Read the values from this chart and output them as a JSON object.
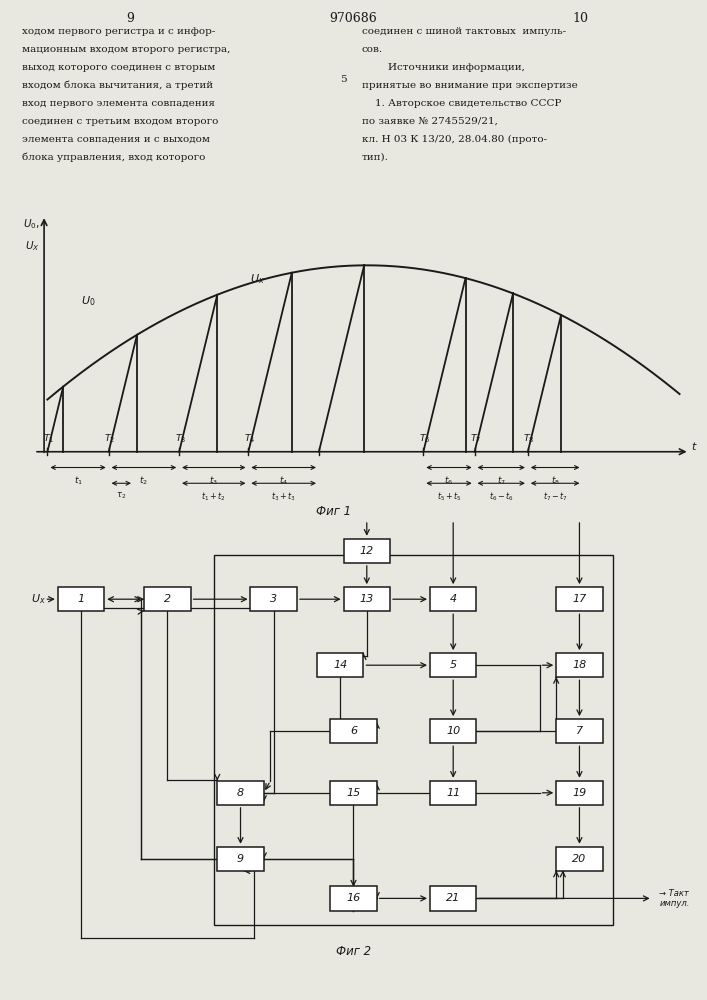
{
  "title_center": "970686",
  "page_left": "9",
  "page_right": "10",
  "text_left": "ходом первого регистра и с инфор-\nмационным входом второго регистра,\nвыход которого соединен с вторым\nвходом блока вычитания, а третий\nвход первого элемента совпадения\nсоединен с третьим входом второго\nэлемента совпадения и с выходом\nблока управления, вход которого",
  "text_right": "соединен с шиной тактовых  импуль-\nсов.\n        Источники информации,\nпринятые во внимание при экспертизе\n    1. Авторское свидетельство СССР\nпо заявке № 2745529/21,\nкл. Н 03 К 13/20, 28.04.80 (прото-\nтип).",
  "line_number": "5",
  "fig1_caption": "Фиг 1",
  "fig2_caption": "Фиг 2",
  "bg_color": "#e8e8e0",
  "line_color": "#1a1a1a"
}
